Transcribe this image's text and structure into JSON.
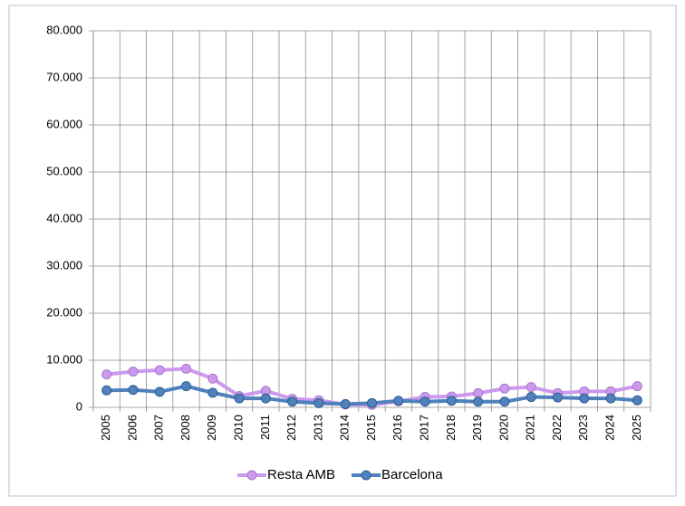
{
  "chart_data": {
    "type": "line",
    "categories": [
      "2005",
      "2006",
      "2007",
      "2008",
      "2009",
      "2010",
      "2011",
      "2012",
      "2013",
      "2014",
      "2015",
      "2016",
      "2017",
      "2018",
      "2019",
      "2020",
      "2021",
      "2022",
      "2023",
      "2024",
      "2025"
    ],
    "series": [
      {
        "name": "Resta AMB",
        "color": "#cc99ee",
        "values": [
          7000,
          7600,
          7900,
          8200,
          6100,
          2400,
          3500,
          1800,
          1500,
          600,
          500,
          1300,
          2200,
          2300,
          3000,
          4000,
          4300,
          3000,
          3400,
          3400,
          4500
        ]
      },
      {
        "name": "Barcelona",
        "color": "#4f81bd",
        "values": [
          3600,
          3700,
          3300,
          4500,
          3100,
          1900,
          1900,
          1200,
          900,
          700,
          900,
          1400,
          1200,
          1400,
          1200,
          1200,
          2200,
          2100,
          1900,
          1900,
          1500
        ]
      }
    ],
    "ylim": [
      0,
      80000
    ],
    "yticks": [
      0,
      {
        "value": 10000,
        "label": "10.000"
      },
      {
        "value": 20000,
        "label": "20.000"
      },
      {
        "value": 30000,
        "label": "30.000"
      },
      {
        "value": 40000,
        "label": "40.000"
      },
      {
        "value": 50000,
        "label": "50.000"
      },
      {
        "value": 60000,
        "label": "60.000"
      },
      {
        "value": 70000,
        "label": "70.000"
      },
      {
        "value": 80000,
        "label": "80.000"
      }
    ],
    "grid": true,
    "legend": "bottom"
  }
}
